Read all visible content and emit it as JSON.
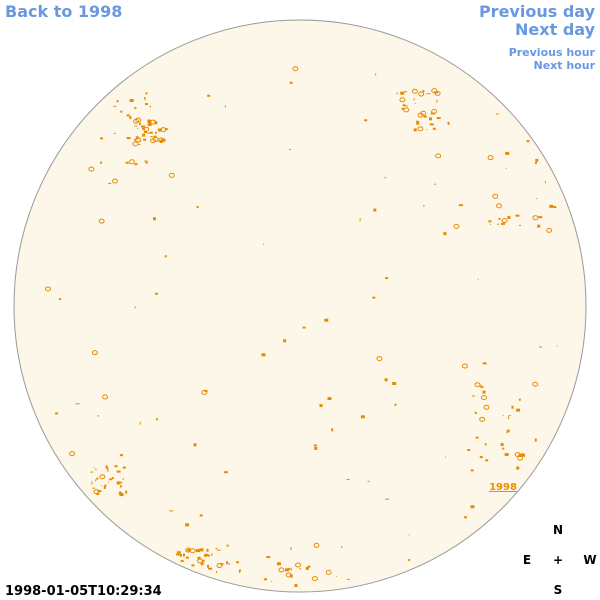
{
  "nav": {
    "back": "Back to 1998",
    "previous_day": "Previous day",
    "next_day": "Next day",
    "previous_hour": "Previous hour",
    "next_hour": "Next hour"
  },
  "disk_label": "1998",
  "compass": {
    "north": "N",
    "east": "E",
    "center": "+",
    "west": "W",
    "south": "S"
  },
  "timestamp": "1998-01-05T10:29:34"
}
